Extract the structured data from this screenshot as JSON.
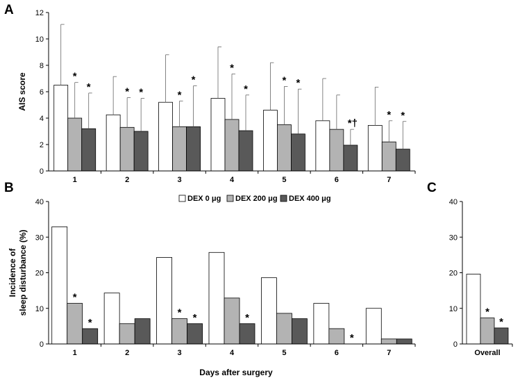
{
  "colors": {
    "series": [
      "#ffffff",
      "#b3b3b3",
      "#595959"
    ],
    "outline": "#000000"
  },
  "xlabel_common": "Days after surgery",
  "legend": {
    "labels": [
      "DEX 0 μg",
      "DEX 200 μg",
      "DEX 400 μg"
    ]
  },
  "chart_data": [
    {
      "panel": "A",
      "type": "bar",
      "ylabel": "AIS score",
      "categories": [
        "1",
        "2",
        "3",
        "4",
        "5",
        "6",
        "7"
      ],
      "ylim": [
        0,
        12
      ],
      "yticks": [
        0,
        2,
        4,
        6,
        8,
        10,
        12
      ],
      "series": [
        {
          "name": "DEX 0 μg",
          "values": [
            6.5,
            4.25,
            5.2,
            5.5,
            4.6,
            3.8,
            3.45
          ],
          "error": [
            4.6,
            2.9,
            3.6,
            3.9,
            3.6,
            3.2,
            2.9
          ],
          "markers": [
            "",
            "",
            "",
            "",
            "",
            "",
            ""
          ]
        },
        {
          "name": "DEX 200 μg",
          "values": [
            4.0,
            3.3,
            3.35,
            3.9,
            3.5,
            3.15,
            2.2
          ],
          "error": [
            2.7,
            2.25,
            1.95,
            3.45,
            2.9,
            2.6,
            1.6
          ],
          "markers": [
            "*",
            "*",
            "*",
            "*",
            "*",
            "",
            "*"
          ]
        },
        {
          "name": "DEX 400 μg",
          "values": [
            3.2,
            3.0,
            3.35,
            3.05,
            2.8,
            1.95,
            1.65
          ],
          "error": [
            2.7,
            2.5,
            3.1,
            2.7,
            3.4,
            1.2,
            2.1
          ],
          "markers": [
            "*",
            "*",
            "*",
            "*",
            "*",
            "*†",
            "*"
          ]
        }
      ]
    },
    {
      "panel": "B",
      "type": "bar",
      "ylabel": "Incidence of sleep disturbance (%)",
      "ylabel_lines": [
        "Incidence of",
        "sleep disturbance (%)"
      ],
      "categories": [
        "1",
        "2",
        "3",
        "4",
        "5",
        "6",
        "7"
      ],
      "ylim": [
        0,
        40
      ],
      "yticks": [
        0,
        10,
        20,
        30,
        40
      ],
      "series": [
        {
          "name": "DEX 0 μg",
          "values": [
            32.9,
            14.3,
            24.3,
            25.7,
            18.6,
            11.4,
            10.0
          ],
          "markers": [
            "",
            "",
            "",
            "",
            "",
            "",
            ""
          ]
        },
        {
          "name": "DEX 200 μg",
          "values": [
            11.4,
            5.7,
            7.1,
            12.9,
            8.6,
            4.3,
            1.4
          ],
          "markers": [
            "*",
            "",
            "*",
            "",
            "",
            "",
            ""
          ]
        },
        {
          "name": "DEX 400 μg",
          "values": [
            4.3,
            7.1,
            5.7,
            5.7,
            7.1,
            0,
            1.4
          ],
          "markers": [
            "*",
            "",
            "*",
            "*",
            "",
            "*",
            ""
          ]
        }
      ]
    },
    {
      "panel": "C",
      "type": "bar",
      "categories": [
        "Overall"
      ],
      "ylim": [
        0,
        40
      ],
      "yticks": [
        0,
        10,
        20,
        30,
        40
      ],
      "series": [
        {
          "name": "DEX 0 μg",
          "values": [
            19.6
          ],
          "markers": [
            ""
          ]
        },
        {
          "name": "DEX 200 μg",
          "values": [
            7.3
          ],
          "markers": [
            "*"
          ]
        },
        {
          "name": "DEX 400 μg",
          "values": [
            4.5
          ],
          "markers": [
            "*"
          ]
        }
      ]
    }
  ]
}
